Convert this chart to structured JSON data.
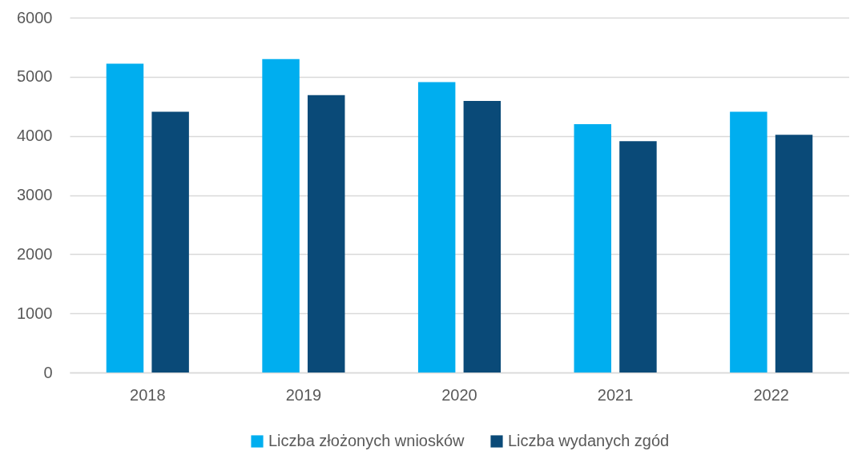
{
  "chart_data": {
    "type": "bar",
    "categories": [
      "2018",
      "2019",
      "2020",
      "2021",
      "2022"
    ],
    "series": [
      {
        "name": "Liczba złożonych wniosków",
        "color": "#00aeef",
        "values": [
          5220,
          5300,
          4910,
          4200,
          4410
        ]
      },
      {
        "name": "Liczba wydanych zgód",
        "color": "#0a4a78",
        "values": [
          4410,
          4690,
          4590,
          3910,
          4020
        ]
      }
    ],
    "ylim": [
      0,
      6000
    ],
    "yticks": [
      0,
      1000,
      2000,
      3000,
      4000,
      5000,
      6000
    ],
    "grid": "y",
    "legend": "bottom"
  }
}
